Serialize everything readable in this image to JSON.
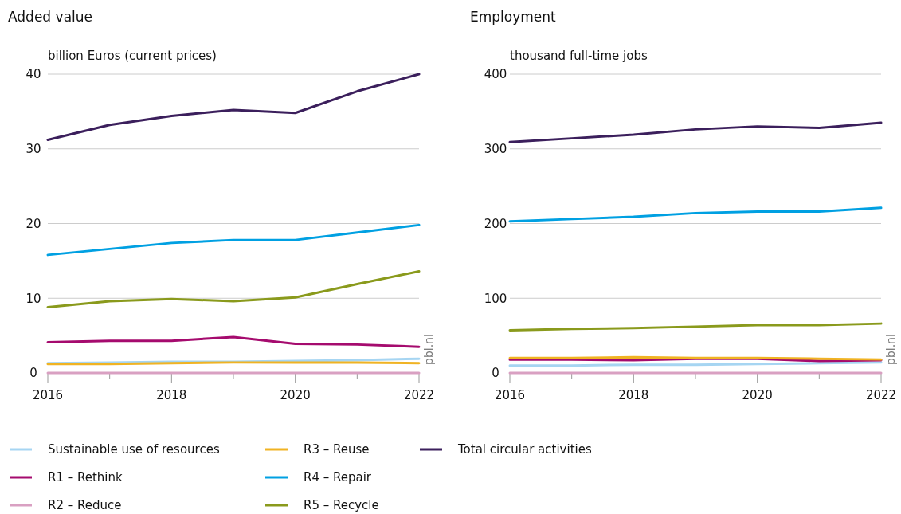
{
  "chart_data": [
    {
      "type": "line",
      "title": "Added value",
      "ylabel": "billion Euros (current prices)",
      "x": [
        2016,
        2017,
        2018,
        2019,
        2020,
        2021,
        2022
      ],
      "xlim": [
        2016,
        2022
      ],
      "xticks": [
        2016,
        {
          "value": 2017,
          "label": null
        },
        2018,
        {
          "value": 2019,
          "label": null
        },
        2020,
        {
          "value": 2021,
          "label": null
        },
        2022
      ],
      "ylim": [
        0,
        40
      ],
      "yticks": [
        0,
        10,
        20,
        30,
        40
      ],
      "grid": "y",
      "legend": "bottom",
      "marker": "none",
      "line_style": "solid",
      "annotations": [
        "pbl.nl"
      ],
      "series": [
        {
          "name": "Sustainable use of resources",
          "color": "#a6d5f2",
          "values": [
            1.3,
            1.4,
            1.5,
            1.5,
            1.6,
            1.7,
            1.9
          ]
        },
        {
          "name": "R1 – Rethink",
          "color": "#a50b6e",
          "values": [
            4.1,
            4.3,
            4.3,
            4.8,
            3.9,
            3.8,
            3.5
          ]
        },
        {
          "name": "R2 – Reduce",
          "color": "#d9a0c2",
          "values": [
            0,
            0,
            0,
            0,
            0,
            0,
            0
          ]
        },
        {
          "name": "R3 – Reuse",
          "color": "#f0b323",
          "values": [
            1.2,
            1.2,
            1.3,
            1.4,
            1.4,
            1.4,
            1.3
          ]
        },
        {
          "name": "R4 – Repair",
          "color": "#00a0e2",
          "values": [
            15.8,
            16.6,
            17.4,
            17.8,
            17.8,
            18.8,
            19.8
          ]
        },
        {
          "name": "R5 – Recycle",
          "color": "#8a9a1c",
          "values": [
            8.8,
            9.6,
            9.9,
            9.6,
            10.1,
            11.9,
            13.6
          ]
        },
        {
          "name": "Total circular activities",
          "color": "#3b1f5c",
          "values": [
            31.2,
            33.2,
            34.4,
            35.2,
            34.8,
            37.7,
            40
          ]
        }
      ]
    },
    {
      "type": "line",
      "title": "Employment",
      "ylabel": "thousand full-time jobs",
      "x": [
        2016,
        2017,
        2018,
        2019,
        2020,
        2021,
        2022
      ],
      "xlim": [
        2016,
        2022
      ],
      "xticks": [
        2016,
        {
          "value": 2017,
          "label": null
        },
        2018,
        {
          "value": 2019,
          "label": null
        },
        2020,
        {
          "value": 2021,
          "label": null
        },
        2022
      ],
      "ylim": [
        0,
        400
      ],
      "yticks": [
        0,
        100,
        200,
        300,
        400
      ],
      "grid": "y",
      "marker": "none",
      "line_style": "solid",
      "annotations": [
        "pbl.nl"
      ],
      "series": [
        {
          "color": "#a6d5f2",
          "values": [
            10,
            10,
            11,
            11,
            12,
            13,
            14
          ]
        },
        {
          "color": "#a50b6e",
          "values": [
            18,
            18,
            17,
            19,
            19,
            16,
            17
          ]
        },
        {
          "color": "#d9a0c2",
          "values": [
            0,
            0,
            0,
            0,
            0,
            0,
            0
          ]
        },
        {
          "color": "#f0b323",
          "values": [
            20,
            20,
            21,
            20,
            20,
            19,
            18
          ]
        },
        {
          "color": "#00a0e2",
          "values": [
            203,
            206,
            209,
            214,
            216,
            216,
            221
          ]
        },
        {
          "color": "#8a9a1c",
          "values": [
            57,
            59,
            60,
            62,
            64,
            64,
            66
          ]
        },
        {
          "color": "#3b1f5c",
          "values": [
            309,
            314,
            319,
            326,
            330,
            328,
            335
          ]
        }
      ]
    }
  ]
}
